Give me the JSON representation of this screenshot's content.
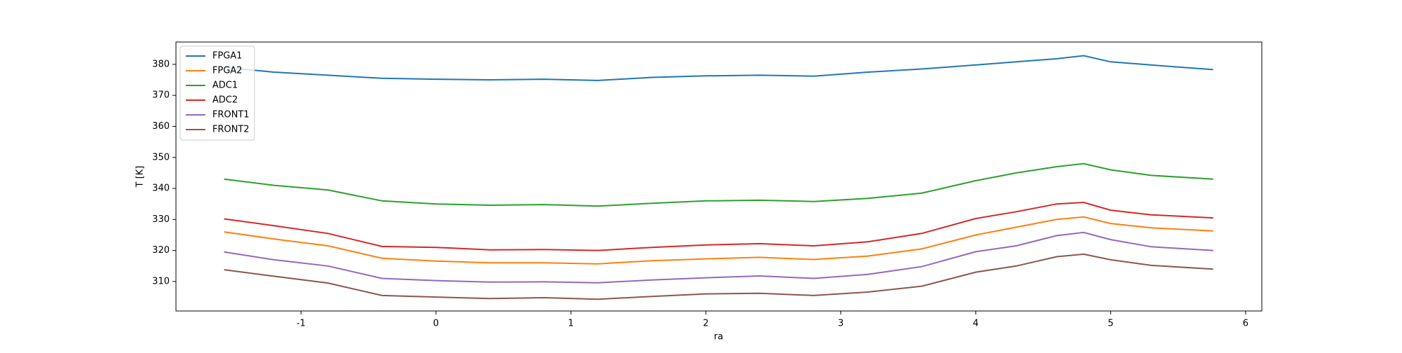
{
  "chart_data": {
    "type": "line",
    "x_label": "ra",
    "y_label": "T [K]",
    "x": [
      -1.57,
      -1.2,
      -0.8,
      -0.4,
      0,
      0.4,
      0.8,
      1.2,
      1.6,
      2.0,
      2.4,
      2.8,
      3.2,
      3.6,
      4.0,
      4.3,
      4.6,
      4.8,
      5.0,
      5.3,
      5.76
    ],
    "series": [
      {
        "name": "FPGA1",
        "color": "#1f77b4",
        "values": [
          379,
          377.5,
          376.5,
          375.5,
          375.2,
          375,
          375.2,
          374.8,
          375.8,
          376.3,
          376.5,
          376.2,
          377.5,
          378.5,
          379.8,
          380.8,
          381.8,
          382.8,
          380.8,
          379.8,
          378.3
        ]
      },
      {
        "name": "FPGA2",
        "color": "#ff7f0e",
        "values": [
          326,
          323.7,
          321.5,
          317.5,
          316.6,
          316,
          316,
          315.7,
          316.7,
          317.3,
          317.8,
          317.1,
          318.2,
          320.5,
          325,
          327.5,
          330,
          330.8,
          328.7,
          327.3,
          326.3
        ]
      },
      {
        "name": "ADC1",
        "color": "#2ca02c",
        "values": [
          343,
          341,
          339.5,
          336,
          335,
          334.6,
          334.8,
          334.3,
          335.2,
          336,
          336.2,
          335.8,
          336.8,
          338.5,
          342.5,
          345,
          347,
          348,
          346,
          344.2,
          343
        ]
      },
      {
        "name": "ADC2",
        "color": "#d62728",
        "values": [
          330.2,
          328,
          325.5,
          321.3,
          321,
          320.2,
          320.3,
          320,
          321,
          321.8,
          322.2,
          321.5,
          322.8,
          325.5,
          330.3,
          332.5,
          335,
          335.5,
          333,
          331.5,
          330.5
        ]
      },
      {
        "name": "FRONT1",
        "color": "#9467bd",
        "values": [
          319.5,
          317,
          315,
          311,
          310.3,
          309.8,
          309.9,
          309.6,
          310.5,
          311.2,
          311.8,
          311,
          312.3,
          314.8,
          319.6,
          321.5,
          324.8,
          325.8,
          323.5,
          321.2,
          320
        ]
      },
      {
        "name": "FRONT2",
        "color": "#8c564b",
        "values": [
          313.8,
          311.7,
          309.5,
          305.5,
          305,
          304.5,
          304.8,
          304.3,
          305.2,
          306,
          306.2,
          305.5,
          306.6,
          308.5,
          313,
          315,
          318,
          318.8,
          317,
          315.2,
          314
        ]
      }
    ],
    "xlim": [
      -1.927,
      6.12
    ],
    "ylim": [
      300.5,
      387.2
    ],
    "xticks": [
      -1,
      0,
      1,
      2,
      3,
      4,
      5,
      6
    ],
    "yticks": [
      310,
      320,
      330,
      340,
      350,
      360,
      370,
      380
    ],
    "legend": "upper left"
  }
}
